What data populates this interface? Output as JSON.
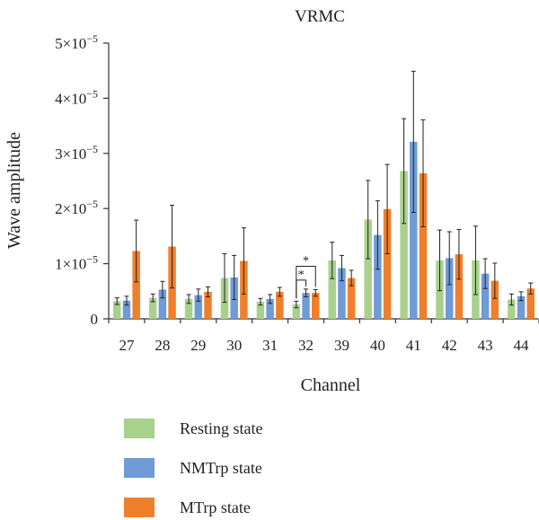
{
  "chart_data": {
    "type": "bar",
    "title": "VRMC",
    "xlabel": "Channel",
    "ylabel": "Wave amplitude",
    "ylim": [
      0,
      5e-05
    ],
    "yticks": [
      {
        "value": 0,
        "label": "0"
      },
      {
        "value": 1e-05,
        "label": "1×10",
        "exp": "−5"
      },
      {
        "value": 2e-05,
        "label": "2×10",
        "exp": "−5"
      },
      {
        "value": 3e-05,
        "label": "3×10",
        "exp": "−5"
      },
      {
        "value": 4e-05,
        "label": "4×10",
        "exp": "−5"
      },
      {
        "value": 5e-05,
        "label": "5×10",
        "exp": "−5"
      }
    ],
    "categories": [
      "27",
      "28",
      "29",
      "30",
      "31",
      "32",
      "39",
      "40",
      "41",
      "42",
      "43",
      "44"
    ],
    "series": [
      {
        "name": "Resting state",
        "color": "#a9d18e",
        "values": [
          3.2e-06,
          3.8e-06,
          3.6e-06,
          7.4e-06,
          3.1e-06,
          2.6e-06,
          1.06e-05,
          1.8e-05,
          2.68e-05,
          1.06e-05,
          1.06e-05,
          3.5e-06
        ],
        "errors": [
          6e-07,
          7e-07,
          8e-07,
          4.4e-06,
          6e-07,
          6e-07,
          3.3e-06,
          7.1e-06,
          9.5e-06,
          5.5e-06,
          6.2e-06,
          1e-06
        ]
      },
      {
        "name": "NMTrp state",
        "color": "#6f9bd6",
        "values": [
          3.3e-06,
          5.3e-06,
          4.3e-06,
          7.5e-06,
          3.6e-06,
          4.7e-06,
          9.2e-06,
          1.52e-05,
          3.21e-05,
          1.1e-05,
          8.2e-06,
          4.1e-06
        ],
        "errors": [
          8e-07,
          1.5e-06,
          1.1e-06,
          4e-06,
          8e-07,
          7e-07,
          2.3e-06,
          6.2e-06,
          1.28e-05,
          4.8e-06,
          2.7e-06,
          8e-07
        ]
      },
      {
        "name": "MTrp state",
        "color": "#f07f2c",
        "values": [
          1.23e-05,
          1.31e-05,
          4.9e-06,
          1.05e-05,
          4.9e-06,
          4.7e-06,
          7.4e-06,
          1.99e-05,
          2.64e-05,
          1.17e-05,
          6.9e-06,
          5.5e-06
        ],
        "errors": [
          5.6e-06,
          7.5e-06,
          9e-07,
          6e-06,
          8e-07,
          6e-07,
          1.4e-06,
          8.1e-06,
          9.7e-06,
          4.5e-06,
          3.2e-06,
          1e-06
        ]
      }
    ],
    "annotations": [
      {
        "channel": "32",
        "from_series": 0,
        "to_series": 1,
        "text": "*"
      },
      {
        "channel": "32",
        "from_series": 0,
        "to_series": 2,
        "text": "*"
      }
    ],
    "legend_position": "bottom-left",
    "grid": false
  }
}
